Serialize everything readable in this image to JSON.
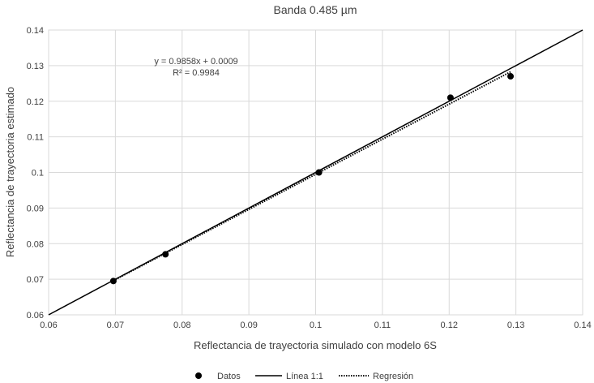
{
  "chart_data": {
    "type": "scatter",
    "title": "Banda 0.485 µm",
    "xlabel": "Reflectancia de trayectoria simulado con modelo 6S",
    "ylabel": "Reflectancia de trayectoria estimado",
    "xlim": [
      0.06,
      0.14
    ],
    "ylim": [
      0.06,
      0.14
    ],
    "xticks": [
      "0.06",
      "0.07",
      "0.08",
      "0.09",
      "0.1",
      "0.11",
      "0.12",
      "0.13",
      "0.14"
    ],
    "yticks": [
      "0.06",
      "0.07",
      "0.08",
      "0.09",
      "0.1",
      "0.11",
      "0.12",
      "0.13",
      "0.14"
    ],
    "grid": true,
    "series": [
      {
        "name": "Datos",
        "kind": "scatter",
        "color": "#000000",
        "x": [
          0.0697,
          0.0775,
          0.1005,
          0.1202,
          0.1292
        ],
        "y": [
          0.0695,
          0.077,
          0.1,
          0.121,
          0.127
        ]
      },
      {
        "name": "Línea 1:1",
        "kind": "line",
        "color": "#000000",
        "x": [
          0.06,
          0.14
        ],
        "y": [
          0.06,
          0.14
        ]
      },
      {
        "name": "Regresión",
        "kind": "dotted-line",
        "color": "#000000",
        "slope": 0.9858,
        "intercept": 0.0009,
        "x": [
          0.0697,
          0.1292
        ]
      }
    ],
    "annotations": [
      "y = 0.9858x + 0.0009",
      "R² = 0.9984"
    ],
    "legend_position": "bottom"
  }
}
